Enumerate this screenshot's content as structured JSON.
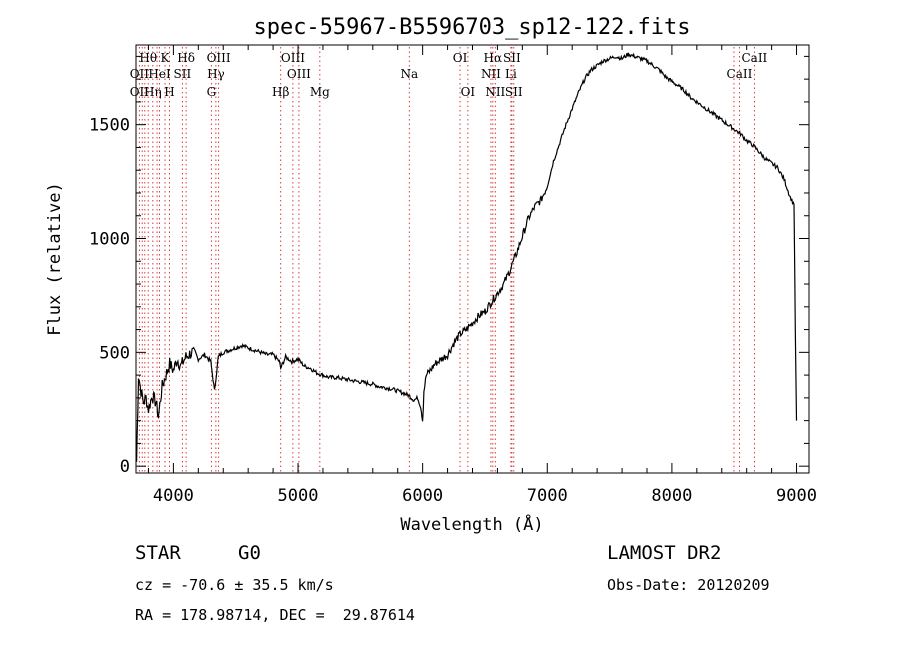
{
  "chart_data": {
    "type": "line",
    "title": "spec-55967-B5596703_sp12-122.fits",
    "xlabel": "Wavelength (Å)",
    "ylabel": "Flux (relative)",
    "xlim": [
      3700,
      9100
    ],
    "ylim": [
      -30,
      1850
    ],
    "x_ticks": [
      4000,
      5000,
      6000,
      7000,
      8000,
      9000
    ],
    "y_ticks": [
      0,
      500,
      1000,
      1500
    ],
    "grid": false,
    "line_color": "#000000",
    "marker_line_color": "#d62728",
    "spectrum": {
      "x": [
        3705,
        3720,
        3740,
        3760,
        3780,
        3800,
        3830,
        3860,
        3880,
        3910,
        3940,
        3970,
        4000,
        4030,
        4060,
        4100,
        4150,
        4200,
        4250,
        4300,
        4330,
        4360,
        4400,
        4450,
        4500,
        4550,
        4600,
        4650,
        4700,
        4750,
        4800,
        4850,
        4861,
        4900,
        4950,
        5000,
        5050,
        5100,
        5150,
        5200,
        5250,
        5300,
        5350,
        5400,
        5450,
        5500,
        5550,
        5600,
        5650,
        5700,
        5750,
        5800,
        5850,
        5890,
        5930,
        5960,
        5985,
        6000,
        6010,
        6030,
        6060,
        6100,
        6150,
        6200,
        6250,
        6300,
        6350,
        6400,
        6450,
        6500,
        6550,
        6600,
        6650,
        6700,
        6750,
        6800,
        6850,
        6900,
        6950,
        7000,
        7050,
        7100,
        7150,
        7200,
        7250,
        7300,
        7350,
        7400,
        7450,
        7500,
        7550,
        7600,
        7650,
        7700,
        7750,
        7800,
        7850,
        7900,
        7950,
        8000,
        8050,
        8100,
        8150,
        8200,
        8250,
        8300,
        8350,
        8400,
        8450,
        8500,
        8550,
        8600,
        8650,
        8700,
        8750,
        8800,
        8850,
        8900,
        8950,
        8980,
        8990,
        9000
      ],
      "y": [
        20,
        400,
        330,
        280,
        300,
        250,
        310,
        280,
        220,
        350,
        400,
        450,
        420,
        470,
        440,
        480,
        500,
        470,
        490,
        460,
        330,
        480,
        500,
        510,
        520,
        530,
        520,
        510,
        500,
        490,
        490,
        460,
        430,
        480,
        460,
        470,
        440,
        430,
        410,
        400,
        390,
        390,
        385,
        380,
        375,
        370,
        365,
        360,
        350,
        345,
        340,
        330,
        320,
        310,
        290,
        300,
        260,
        200,
        330,
        400,
        420,
        450,
        470,
        490,
        540,
        580,
        600,
        630,
        660,
        680,
        720,
        760,
        800,
        860,
        930,
        1010,
        1090,
        1140,
        1170,
        1230,
        1340,
        1420,
        1500,
        1570,
        1640,
        1700,
        1740,
        1760,
        1780,
        1790,
        1800,
        1790,
        1810,
        1800,
        1790,
        1780,
        1760,
        1740,
        1710,
        1690,
        1670,
        1650,
        1620,
        1600,
        1580,
        1560,
        1540,
        1520,
        1500,
        1480,
        1460,
        1430,
        1410,
        1380,
        1350,
        1330,
        1310,
        1260,
        1180,
        1150,
        600,
        200
      ]
    },
    "annotations": [
      {
        "label": "Hθ",
        "x": 3798,
        "row": 1
      },
      {
        "label": "K",
        "x": 3933,
        "row": 1
      },
      {
        "label": "Hδ",
        "x": 4102,
        "row": 1
      },
      {
        "label": "OIII",
        "x": 4363,
        "row": 1
      },
      {
        "label": "OIII",
        "x": 4959,
        "row": 1
      },
      {
        "label": "OI",
        "x": 6300,
        "row": 1
      },
      {
        "label": "Hα",
        "x": 6563,
        "row": 1
      },
      {
        "label": "SII",
        "x": 6716,
        "row": 1
      },
      {
        "label": "CaII",
        "x": 8662,
        "row": 1
      },
      {
        "label": "OII",
        "x": 3727,
        "row": 2
      },
      {
        "label": "HeI",
        "x": 3889,
        "row": 2
      },
      {
        "label": "SII",
        "x": 4072,
        "row": 2
      },
      {
        "label": "Hγ",
        "x": 4341,
        "row": 2
      },
      {
        "label": "OIII",
        "x": 5007,
        "row": 2
      },
      {
        "label": "Na",
        "x": 5893,
        "row": 2
      },
      {
        "label": "NII",
        "x": 6548,
        "row": 2
      },
      {
        "label": "Li",
        "x": 6708,
        "row": 2
      },
      {
        "label": "CaII",
        "x": 8542,
        "row": 2
      },
      {
        "label": "OII",
        "x": 3727,
        "row": 3
      },
      {
        "label": "Hη",
        "x": 3835,
        "row": 3
      },
      {
        "label": "H",
        "x": 3969,
        "row": 3
      },
      {
        "label": "G",
        "x": 4305,
        "row": 3
      },
      {
        "label": "Hβ",
        "x": 4861,
        "row": 3
      },
      {
        "label": "Mg",
        "x": 5175,
        "row": 3
      },
      {
        "label": "OI",
        "x": 6363,
        "row": 3
      },
      {
        "label": "NII",
        "x": 6583,
        "row": 3
      },
      {
        "label": "SII",
        "x": 6731,
        "row": 3
      }
    ],
    "marker_lines": [
      3727,
      3750,
      3771,
      3798,
      3835,
      3869,
      3889,
      3933,
      3969,
      4072,
      4102,
      4305,
      4341,
      4363,
      4861,
      4959,
      5007,
      5175,
      5893,
      6300,
      6363,
      6548,
      6563,
      6583,
      6708,
      6716,
      6731,
      8498,
      8542,
      8662
    ]
  },
  "footer": {
    "class_label": "STAR",
    "subclass_label": "G0",
    "survey_label": "LAMOST DR2",
    "redshift_text": "cz = -70.6 ± 35.5 km/s",
    "obs_date_text": "Obs-Date: 20120209",
    "coords_text": "RA = 178.98714, DEC =  29.87614"
  }
}
